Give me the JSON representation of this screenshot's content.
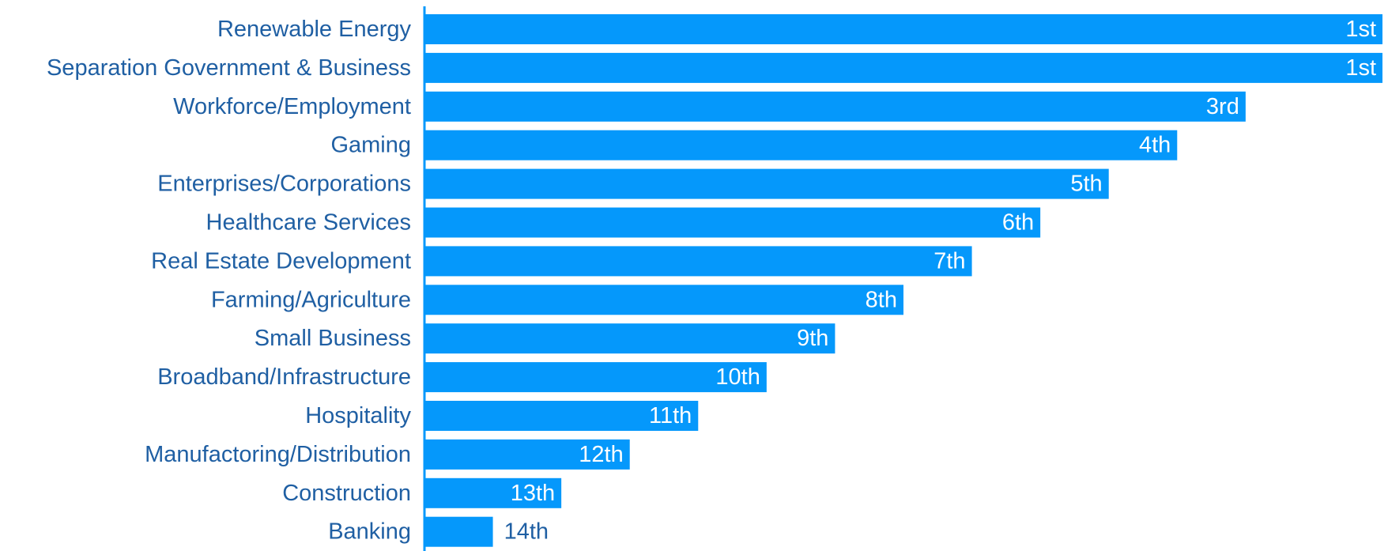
{
  "chart_data": {
    "type": "bar",
    "orientation": "horizontal",
    "categories": [
      "Renewable Energy",
      "Separation Government & Business",
      "Workforce/Employment",
      "Gaming",
      "Enterprises/Corporations",
      "Healthcare Services",
      "Real Estate Development",
      "Farming/Agriculture",
      "Small Business",
      "Broadband/Infrastructure",
      "Hospitality",
      "Manufactoring/Distribution",
      "Construction",
      "Banking"
    ],
    "values": [
      14,
      14,
      12,
      11,
      10,
      9,
      8,
      7,
      6,
      5,
      4,
      3,
      2,
      1
    ],
    "labels": [
      "1st",
      "1st",
      "3rd",
      "4th",
      "5th",
      "6th",
      "7th",
      "8th",
      "9th",
      "10th",
      "11th",
      "12th",
      "13th",
      "14th"
    ],
    "xlim": [
      0,
      14
    ],
    "grid": false,
    "legend": "none"
  },
  "colors": {
    "bar": "#0598fb",
    "category_text": "#1f5fa3",
    "value_text_inside": "#ffffff",
    "value_text_outside": "#1f5fa3",
    "axis": "#0598fb"
  }
}
